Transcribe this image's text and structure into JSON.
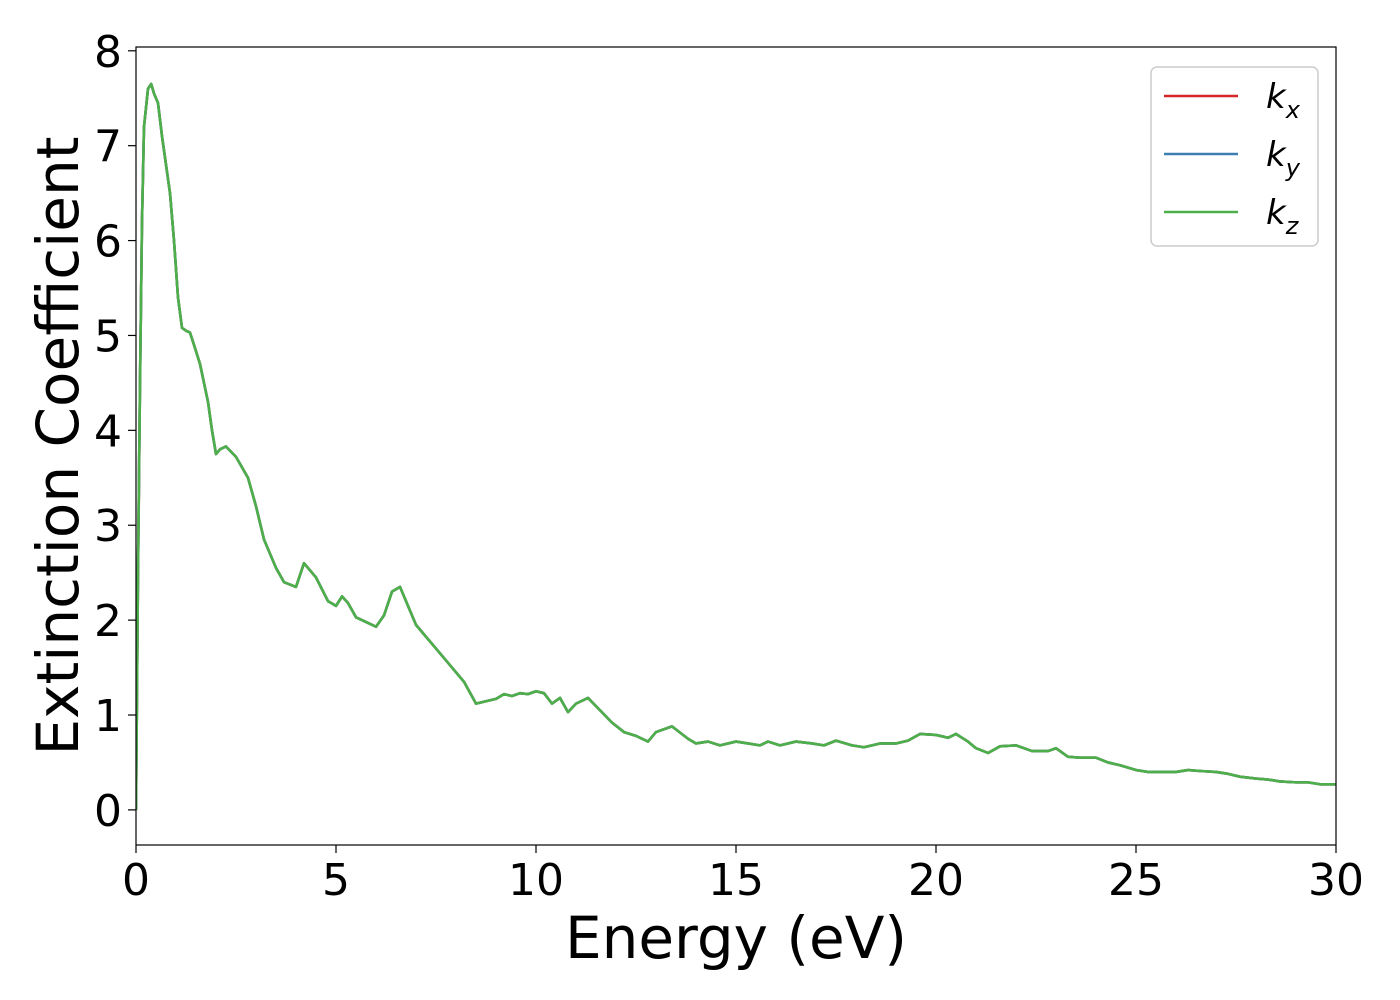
{
  "chart_data": {
    "type": "line",
    "title": "",
    "xlabel": "Energy (eV)",
    "ylabel": "Extinction Coefficient",
    "xlim": [
      0,
      30
    ],
    "ylim": [
      -0.37,
      8.04
    ],
    "xticks": [
      "0",
      "5",
      "10",
      "15",
      "20",
      "25",
      "30"
    ],
    "yticks": [
      "0",
      "1",
      "2",
      "3",
      "4",
      "5",
      "6",
      "7",
      "8"
    ],
    "grid": false,
    "legend_position": "top-right",
    "colors": {
      "kx": "#d62728",
      "ky": "#3c7fb1",
      "kz": "#4daf4a"
    },
    "series": [
      {
        "name": "k_x",
        "label_base": "k",
        "label_sub": "x",
        "color": "#d62728"
      },
      {
        "name": "k_y",
        "label_base": "k",
        "label_sub": "y",
        "color": "#3c7fb1"
      },
      {
        "name": "k_z",
        "label_base": "k",
        "label_sub": "z",
        "color": "#4daf4a"
      }
    ],
    "x": [
      0,
      0.05,
      0.1,
      0.15,
      0.2,
      0.3,
      0.38,
      0.45,
      0.55,
      0.65,
      0.75,
      0.85,
      0.95,
      1.05,
      1.15,
      1.25,
      1.35,
      1.45,
      1.6,
      1.8,
      1.9,
      2.0,
      2.1,
      2.25,
      2.5,
      2.8,
      3.0,
      3.2,
      3.5,
      3.7,
      4.0,
      4.2,
      4.5,
      4.8,
      5.0,
      5.15,
      5.3,
      5.5,
      5.8,
      6.0,
      6.2,
      6.4,
      6.6,
      6.8,
      7.0,
      7.2,
      7.5,
      7.8,
      8.0,
      8.2,
      8.5,
      8.8,
      9.0,
      9.2,
      9.4,
      9.6,
      9.8,
      10.0,
      10.2,
      10.4,
      10.6,
      10.8,
      11.0,
      11.3,
      11.6,
      11.9,
      12.2,
      12.5,
      12.8,
      13.0,
      13.4,
      13.8,
      14.0,
      14.3,
      14.6,
      15.0,
      15.3,
      15.6,
      15.8,
      16.1,
      16.5,
      16.9,
      17.2,
      17.5,
      17.9,
      18.2,
      18.6,
      19.0,
      19.3,
      19.6,
      20.0,
      20.3,
      20.5,
      20.8,
      21.0,
      21.3,
      21.6,
      22.0,
      22.4,
      22.8,
      23.0,
      23.3,
      23.6,
      24.0,
      24.3,
      24.6,
      25.0,
      25.3,
      25.6,
      26.0,
      26.3,
      26.6,
      27.0,
      27.3,
      27.6,
      28.0,
      28.3,
      28.6,
      29.0,
      29.3,
      29.6,
      30.0
    ],
    "y": [
      0.0,
      2.5,
      4.5,
      6.2,
      7.2,
      7.6,
      7.65,
      7.55,
      7.45,
      7.1,
      6.8,
      6.5,
      6.0,
      5.4,
      5.08,
      5.05,
      5.03,
      4.9,
      4.7,
      4.3,
      4.0,
      3.75,
      3.8,
      3.83,
      3.72,
      3.5,
      3.2,
      2.85,
      2.55,
      2.4,
      2.35,
      2.6,
      2.45,
      2.2,
      2.15,
      2.25,
      2.18,
      2.03,
      1.97,
      1.93,
      2.05,
      2.3,
      2.35,
      2.15,
      1.95,
      1.85,
      1.7,
      1.55,
      1.45,
      1.35,
      1.12,
      1.15,
      1.17,
      1.22,
      1.2,
      1.23,
      1.22,
      1.25,
      1.23,
      1.12,
      1.18,
      1.03,
      1.12,
      1.18,
      1.05,
      0.92,
      0.82,
      0.78,
      0.72,
      0.82,
      0.88,
      0.75,
      0.7,
      0.72,
      0.68,
      0.72,
      0.7,
      0.68,
      0.72,
      0.68,
      0.72,
      0.7,
      0.68,
      0.73,
      0.68,
      0.66,
      0.7,
      0.7,
      0.73,
      0.8,
      0.79,
      0.76,
      0.8,
      0.72,
      0.65,
      0.6,
      0.67,
      0.68,
      0.62,
      0.62,
      0.65,
      0.56,
      0.55,
      0.55,
      0.5,
      0.47,
      0.42,
      0.4,
      0.4,
      0.4,
      0.42,
      0.41,
      0.4,
      0.38,
      0.35,
      0.33,
      0.32,
      0.3,
      0.29,
      0.29,
      0.27,
      0.27
    ]
  }
}
